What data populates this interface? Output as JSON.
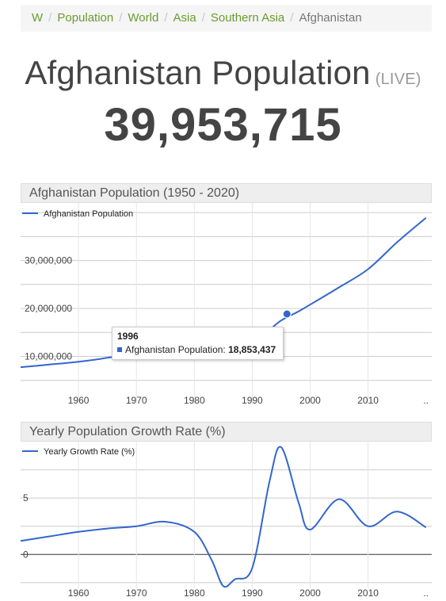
{
  "breadcrumb": {
    "items": [
      "W",
      "Population",
      "World",
      "Asia",
      "Southern Asia"
    ],
    "current": "Afghanistan"
  },
  "header": {
    "title": "Afghanistan Population",
    "live_tag": "(LIVE)",
    "counter": "39,953,715"
  },
  "colors": {
    "line": "#3366cc",
    "link": "#6a9c2f",
    "panel_bg": "#eeeeee"
  },
  "tooltip": {
    "year": "1996",
    "series": "Afghanistan Population:",
    "value": "18,853,437"
  },
  "chart_data": [
    {
      "type": "line",
      "title": "Afghanistan Population (1950 - 2020)",
      "legend_position": "top-left",
      "series": [
        {
          "name": "Afghanistan Population",
          "x": [
            1950,
            1955,
            1960,
            1965,
            1970,
            1975,
            1980,
            1985,
            1990,
            1993,
            1995,
            1998,
            2000,
            2005,
            2010,
            2015,
            2020
          ],
          "values": [
            7.75,
            8.3,
            8.9,
            9.7,
            10.75,
            12.4,
            13.35,
            11.9,
            12.4,
            15.5,
            17.5,
            19.4,
            20.8,
            24.4,
            28.2,
            33.8,
            38.9
          ]
        }
      ],
      "xlim": [
        1950,
        2021
      ],
      "ylim": [
        0,
        42
      ],
      "y_unit": "millions",
      "x_ticks": [
        "1960",
        "1970",
        "1980",
        "1990",
        "2000",
        "2010",
        ".."
      ],
      "y_ticks": [
        "10,000,000",
        "20,000,000",
        "30,000,000"
      ],
      "highlight": {
        "x": 1996,
        "y": 18.85
      },
      "grid": true
    },
    {
      "type": "line",
      "title": "Yearly Population Growth Rate (%)",
      "legend_position": "top-left",
      "series": [
        {
          "name": "Yearly Growth Rate (%)",
          "x": [
            1950,
            1955,
            1960,
            1965,
            1970,
            1975,
            1980,
            1983,
            1985,
            1987,
            1990,
            1993,
            1995,
            1998,
            2000,
            2005,
            2010,
            2015,
            2020
          ],
          "values": [
            1.2,
            1.6,
            2.0,
            2.3,
            2.5,
            2.9,
            2.0,
            -0.5,
            -2.8,
            -2.2,
            -1.2,
            6.5,
            9.5,
            4.6,
            2.2,
            4.9,
            2.5,
            3.8,
            2.4
          ]
        }
      ],
      "xlim": [
        1950,
        2021
      ],
      "ylim": [
        -3,
        10
      ],
      "x_ticks": [
        "1960",
        "1970",
        "1980",
        "1990",
        "2000",
        "2010",
        ".."
      ],
      "y_ticks": [
        "0",
        "5"
      ],
      "grid": true
    }
  ]
}
